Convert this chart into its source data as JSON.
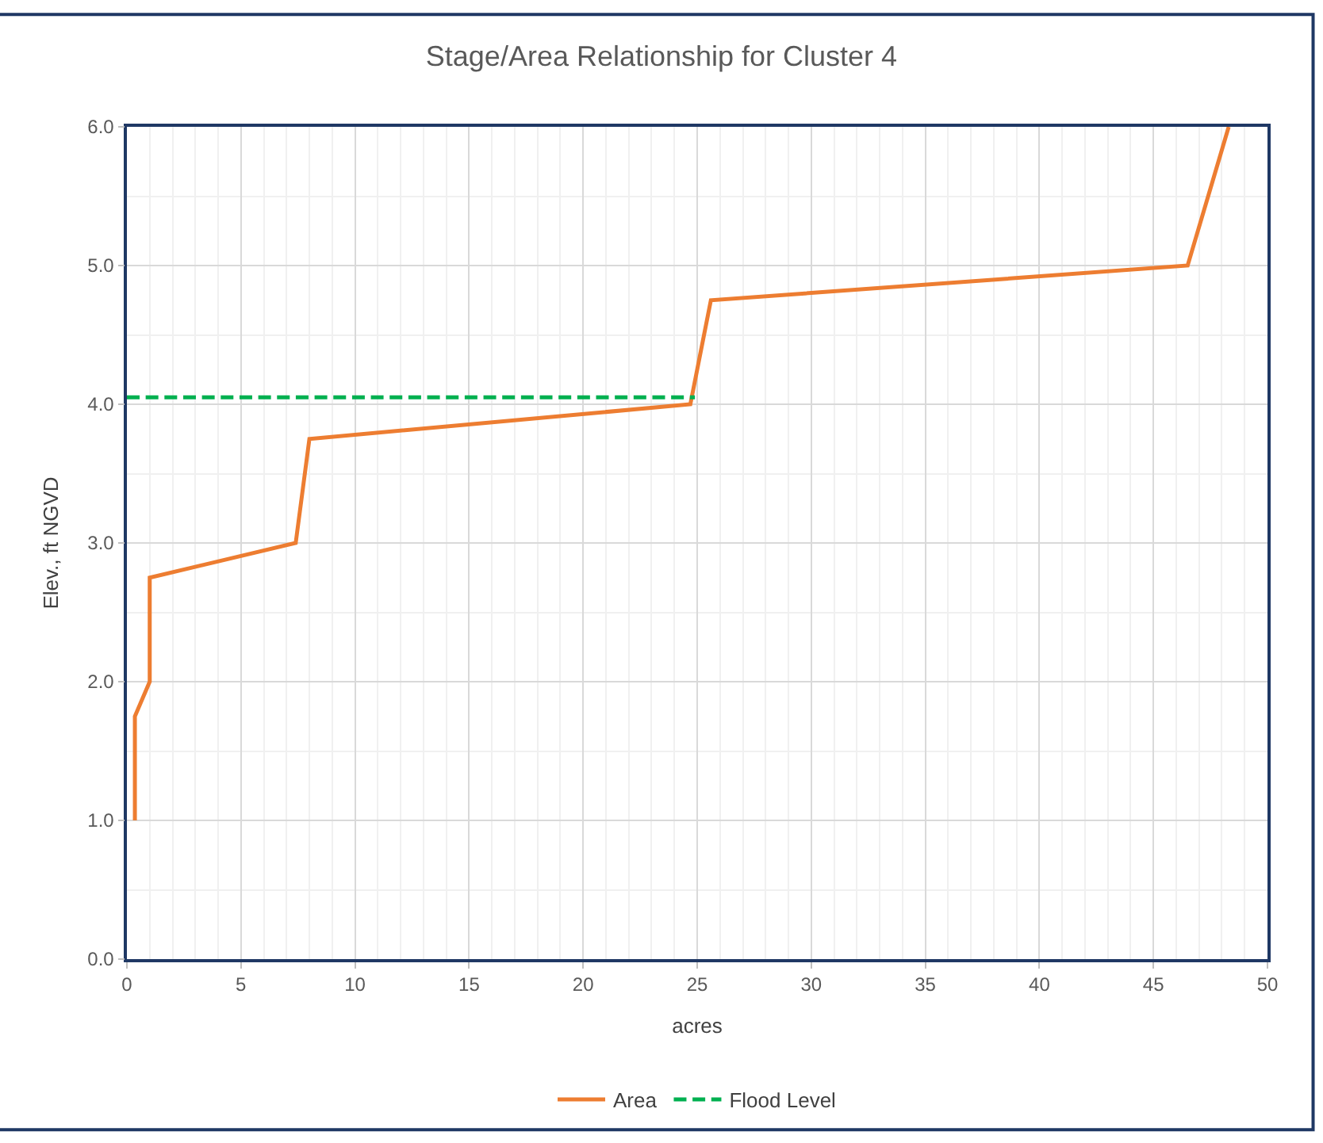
{
  "chart_data": {
    "type": "line",
    "title": "Stage/Area Relationship for Cluster 4",
    "xlabel": "acres",
    "ylabel": "Elev., ft NGVD",
    "series": [
      {
        "name": "Area",
        "color": "#ed7d31",
        "line_style": "solid",
        "x": [
          0.35,
          0.35,
          1.0,
          1.0,
          7.4,
          7.6,
          8.0,
          24.7,
          25.0,
          25.3,
          25.6,
          46.5,
          48.3
        ],
        "values": [
          1.0,
          1.75,
          2.0,
          2.75,
          3.0,
          3.25,
          3.75,
          4.0,
          4.25,
          4.5,
          4.75,
          5.0,
          6.0
        ]
      },
      {
        "name": "Flood Level",
        "color": "#00b050",
        "line_style": "dashed",
        "x": [
          0,
          24.9
        ],
        "values": [
          4.05,
          4.05
        ]
      }
    ],
    "xlim": [
      0,
      50
    ],
    "xticks": [
      0,
      5,
      10,
      15,
      20,
      25,
      30,
      35,
      40,
      45,
      50
    ],
    "ylim": [
      0,
      6
    ],
    "yticks": [
      {
        "value": 0,
        "label": "0.0"
      },
      {
        "value": 1,
        "label": "1.0"
      },
      {
        "value": 2,
        "label": "2.0"
      },
      {
        "value": 3,
        "label": "3.0"
      },
      {
        "value": 4,
        "label": "4.0"
      },
      {
        "value": 5,
        "label": "5.0"
      },
      {
        "value": 6,
        "label": "6.0"
      }
    ],
    "grid": true,
    "legend": "bottom",
    "marker": "none"
  }
}
